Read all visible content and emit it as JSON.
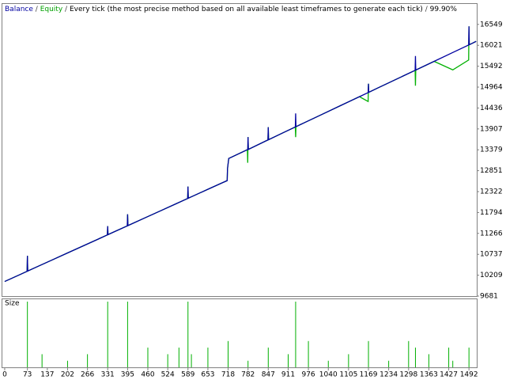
{
  "chart_data": {
    "type": "line",
    "title_parts": [
      "Balance",
      "/",
      "Equity",
      "/",
      "Every tick (the most precise method based on all available least timeframes to generate each tick)",
      "/",
      "99.90%"
    ],
    "title_colors": [
      "#0000a0",
      "#404040",
      "#00a000",
      "#404040",
      "#000000",
      "#404040",
      "#000000"
    ],
    "x": [
      0,
      50,
      72,
      73,
      74,
      100,
      150,
      200,
      250,
      300,
      330,
      331,
      332,
      350,
      394,
      395,
      396,
      400,
      450,
      500,
      550,
      588,
      589,
      590,
      600,
      650,
      700,
      715,
      716,
      720,
      780,
      781,
      782,
      783,
      840,
      846,
      847,
      848,
      900,
      934,
      935,
      936,
      960,
      1020,
      1080,
      1140,
      1168,
      1169,
      1170,
      1200,
      1260,
      1319,
      1320,
      1321,
      1380,
      1440,
      1491,
      1492,
      1493,
      1500,
      1515
    ],
    "series": [
      {
        "name": "Equity",
        "color": "#00b000",
        "values": [
          10050,
          10228,
          10307,
          10700,
          10314,
          10407,
          10585,
          10764,
          10942,
          11120,
          11228,
          11450,
          11235,
          11299,
          11456,
          11750,
          11463,
          11477,
          11656,
          11834,
          12013,
          12148,
          12450,
          12155,
          12191,
          12370,
          12548,
          12600,
          12900,
          13160,
          13383,
          13050,
          13700,
          13390,
          13606,
          13628,
          13950,
          13635,
          13830,
          13956,
          13700,
          13963,
          14053,
          14276,
          14499,
          14722,
          14600,
          15050,
          14833,
          14946,
          15169,
          15388,
          15000,
          15395,
          15615,
          15400,
          15650,
          16500,
          16036,
          16062,
          16120
        ]
      },
      {
        "name": "Balance",
        "color": "#0000a0",
        "values": [
          10050,
          10228,
          10307,
          10700,
          10314,
          10407,
          10585,
          10764,
          10942,
          11120,
          11228,
          11450,
          11235,
          11299,
          11456,
          11750,
          11463,
          11477,
          11656,
          11834,
          12013,
          12148,
          12450,
          12155,
          12191,
          12370,
          12548,
          12600,
          12900,
          13160,
          13383,
          13383,
          13700,
          13390,
          13606,
          13628,
          13950,
          13635,
          13830,
          13956,
          14300,
          13963,
          14053,
          14276,
          14499,
          14722,
          14826,
          15050,
          14833,
          14946,
          15169,
          15388,
          15750,
          15395,
          15615,
          15839,
          16029,
          16500,
          16036,
          16062,
          16120
        ]
      }
    ],
    "xlim": [
      -10,
      1517
    ],
    "xticks": [
      0,
      73,
      137,
      202,
      266,
      331,
      395,
      460,
      524,
      589,
      653,
      718,
      782,
      847,
      911,
      976,
      1040,
      1105,
      1169,
      1234,
      1298,
      1363,
      1427,
      1492
    ],
    "ylim": [
      9681,
      17066
    ],
    "yticks": [
      16549,
      16021,
      15492,
      14964,
      14436,
      13907,
      13379,
      12851,
      12322,
      11794,
      11266,
      10737,
      10209,
      9681
    ],
    "size_panel": {
      "label": "Size",
      "color": "#00b000",
      "ylim": [
        0,
        10
      ],
      "x": [
        73,
        120,
        202,
        266,
        331,
        395,
        460,
        524,
        560,
        589,
        600,
        653,
        718,
        782,
        847,
        911,
        935,
        976,
        1040,
        1105,
        1169,
        1234,
        1298,
        1320,
        1363,
        1427,
        1440,
        1492
      ],
      "values": [
        10,
        2,
        1,
        2,
        10,
        10,
        3,
        2,
        3,
        10,
        2,
        3,
        4,
        1,
        3,
        2,
        10,
        4,
        1,
        2,
        4,
        1,
        4,
        3,
        2,
        3,
        1,
        3
      ]
    }
  }
}
